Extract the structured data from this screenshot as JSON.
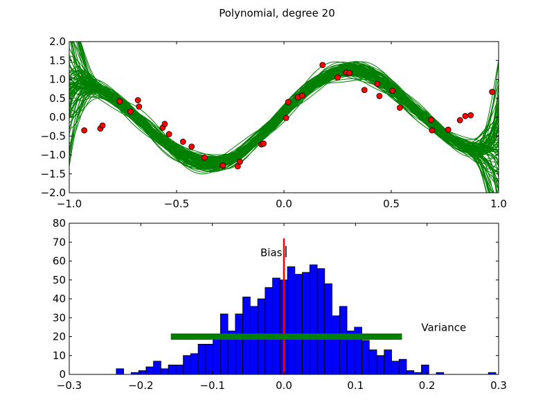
{
  "figure": {
    "title": "Polynomial, degree 20"
  },
  "colors": {
    "fits": "#008000",
    "points": "#ff0000",
    "bars": "#0000ff",
    "bias_line": "#ff0000",
    "variance_bar": "#008000",
    "bias_mark": "#000000"
  },
  "chart_data": [
    {
      "type": "line",
      "title": "",
      "xlabel": "",
      "ylabel": "",
      "xlim": [
        -1.0,
        1.0
      ],
      "ylim": [
        -2.0,
        2.0
      ],
      "xticks": [
        -1.0,
        -0.5,
        0.0,
        0.5,
        1.0
      ],
      "yticks": [
        -2.0,
        -1.5,
        -1.0,
        -0.5,
        0.0,
        0.5,
        1.0,
        1.5,
        2.0
      ],
      "xtick_labels": [
        "−1.0",
        "−0.5",
        "0.0",
        "0.5",
        "1.0"
      ],
      "ytick_labels": [
        "−2.0",
        "−1.5",
        "−1.0",
        "−0.5",
        "0.0",
        "0.5",
        "1.0",
        "1.5",
        "2.0"
      ],
      "grid": false,
      "num_fit_curves": 100,
      "scatter_points": {
        "x": [
          -0.93,
          -0.855,
          -0.845,
          -0.765,
          -0.715,
          -0.68,
          -0.675,
          -0.565,
          -0.555,
          -0.535,
          -0.47,
          -0.43,
          -0.37,
          -0.285,
          -0.215,
          -0.205,
          -0.105,
          -0.095,
          0.01,
          0.02,
          0.065,
          0.085,
          0.18,
          0.25,
          0.29,
          0.305,
          0.375,
          0.435,
          0.445,
          0.505,
          0.54,
          0.685,
          0.69,
          0.765,
          0.82,
          0.845,
          0.87,
          0.97
        ],
        "y": [
          -0.35,
          -0.3,
          -0.22,
          0.42,
          0.15,
          0.45,
          0.28,
          -0.28,
          -0.18,
          -0.45,
          -0.65,
          -0.78,
          -1.07,
          -1.28,
          -1.3,
          -1.18,
          -0.72,
          -0.7,
          -0.02,
          0.4,
          0.53,
          0.57,
          1.38,
          1.05,
          1.18,
          1.17,
          0.72,
          0.88,
          0.56,
          0.7,
          0.25,
          -0.07,
          -0.35,
          -0.33,
          -0.08,
          0.03,
          0.05,
          0.67
        ]
      }
    },
    {
      "type": "bar",
      "title": "",
      "xlabel": "",
      "ylabel": "",
      "xlim": [
        -0.3,
        0.3
      ],
      "ylim": [
        0,
        80
      ],
      "xticks": [
        -0.3,
        -0.2,
        -0.1,
        0.0,
        0.1,
        0.2,
        0.3
      ],
      "yticks": [
        0,
        10,
        20,
        30,
        40,
        50,
        60,
        70,
        80
      ],
      "xtick_labels": [
        "−0.3",
        "−0.2",
        "−0.1",
        "0.0",
        "0.1",
        "0.2",
        "0.3"
      ],
      "ytick_labels": [
        "0",
        "10",
        "20",
        "30",
        "40",
        "50",
        "60",
        "70",
        "80"
      ],
      "grid": false,
      "bin_width": 0.0104,
      "bin_left": [
        -0.2343,
        -0.2239,
        -0.2135,
        -0.2031,
        -0.1927,
        -0.1823,
        -0.1719,
        -0.1615,
        -0.1511,
        -0.1407,
        -0.1303,
        -0.1199,
        -0.1095,
        -0.0991,
        -0.0887,
        -0.0783,
        -0.0679,
        -0.0575,
        -0.0471,
        -0.0367,
        -0.0263,
        -0.0159,
        -0.0055,
        0.0049,
        0.0153,
        0.0257,
        0.0361,
        0.0465,
        0.0569,
        0.0673,
        0.0777,
        0.0881,
        0.0985,
        0.1089,
        0.1193,
        0.1297,
        0.1401,
        0.1505,
        0.1609,
        0.1713,
        0.1817,
        0.1921,
        0.2025,
        0.2129,
        0.2233,
        0.2337,
        0.2441,
        0.2545,
        0.2649,
        0.2753,
        0.2857
      ],
      "counts": [
        3,
        0,
        1,
        2,
        4,
        7,
        3,
        5,
        5,
        10,
        11,
        16,
        16,
        19,
        32,
        23,
        32,
        41,
        36,
        40,
        46,
        51,
        50,
        57,
        53,
        54,
        58,
        56,
        48,
        31,
        36,
        23,
        25,
        18,
        13,
        10,
        13,
        7,
        8,
        2,
        1,
        5,
        0,
        1,
        0,
        0,
        0,
        0,
        0,
        0,
        1
      ],
      "bias": {
        "label": "Bias",
        "x": 0.0
      },
      "variance": {
        "label": "Variance",
        "x_start": -0.158,
        "x_end": 0.165,
        "y": 20
      }
    }
  ]
}
